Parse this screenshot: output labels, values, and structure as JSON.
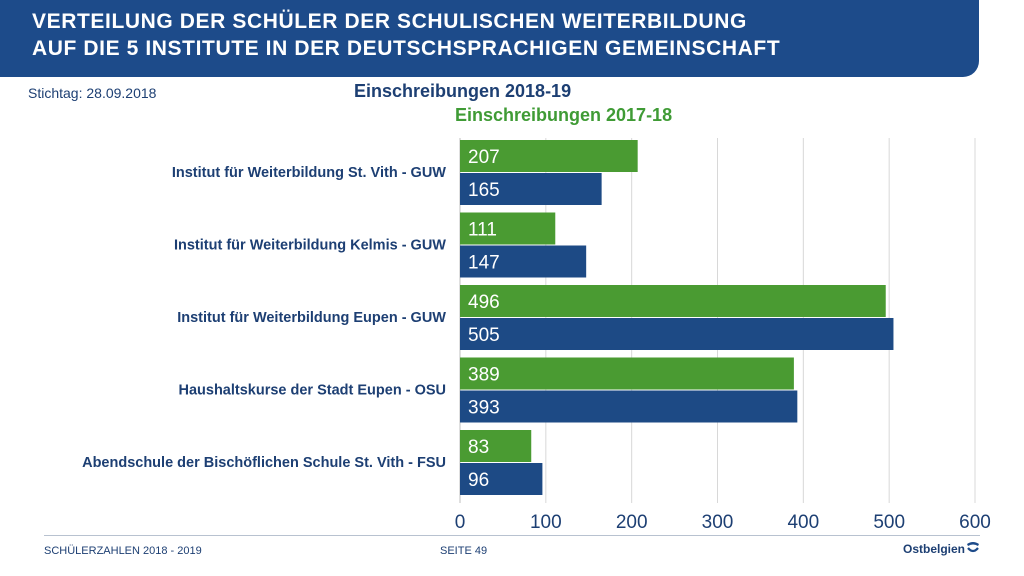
{
  "header": {
    "line1": "VERTEILUNG DER SCHÜLER DER SCHULISCHEN WEITERBILDUNG",
    "line2": "AUF DIE 5 INSTITUTE IN DER DEUTSCHSPRACHIGEN GEMEINSCHAFT"
  },
  "stichtag": "Stichtag: 28.09.2018",
  "footer": {
    "left": "SCHÜLERZAHLEN 2018 - 2019",
    "page": "SEITE 49",
    "logo": "Ostbelgien"
  },
  "colors": {
    "header": "#1d4b8a",
    "series_2017": "#4a9b32",
    "series_2018": "#1d4a85",
    "grid": "#d8d8d8",
    "label_text": "#1d3f73"
  },
  "chart_data": {
    "type": "bar",
    "orientation": "horizontal",
    "categories": [
      "Institut für Weiterbildung St. Vith - GUW",
      "Institut für Weiterbildung Kelmis -  GUW",
      "Institut für Weiterbildung Eupen - GUW",
      "Haushaltskurse der Stadt Eupen - OSU",
      "Abendschule der Bischöflichen Schule St. Vith - FSU"
    ],
    "series": [
      {
        "name": "Einschreibungen 2017-18",
        "values": [
          207,
          111,
          496,
          389,
          83
        ]
      },
      {
        "name": "Einschreibungen 2018-19",
        "values": [
          165,
          147,
          505,
          393,
          96
        ]
      }
    ],
    "xlim": [
      0,
      600
    ],
    "xticks": [
      0,
      100,
      200,
      300,
      400,
      500,
      600
    ],
    "grid": true,
    "title": "",
    "xlabel": "",
    "ylabel": ""
  }
}
